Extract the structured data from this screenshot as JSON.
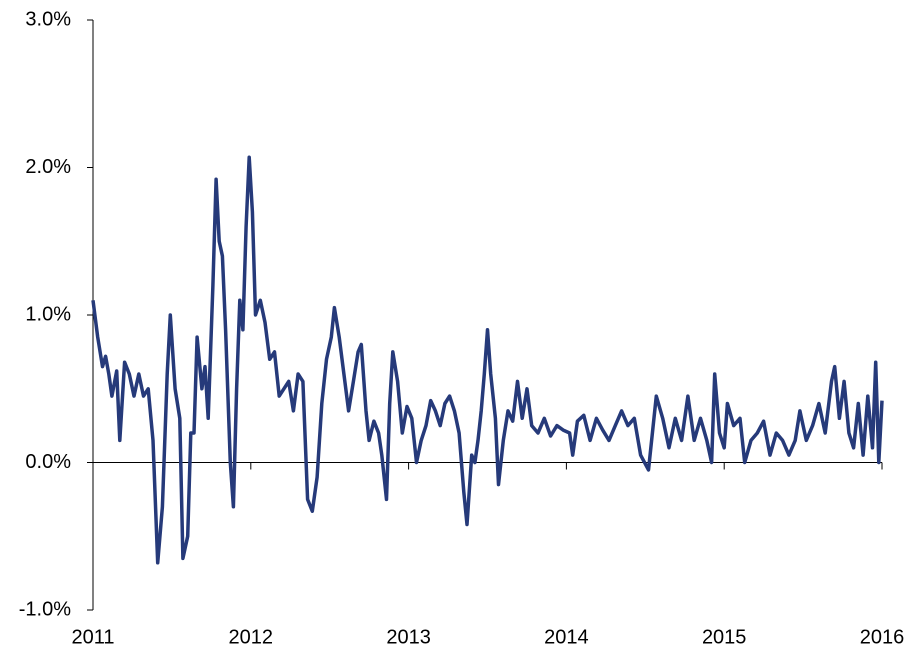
{
  "chart_data": {
    "type": "line",
    "x": [
      2011.0,
      2011.03,
      2011.06,
      2011.08,
      2011.1,
      2011.12,
      2011.15,
      2011.17,
      2011.2,
      2011.23,
      2011.26,
      2011.29,
      2011.32,
      2011.35,
      2011.38,
      2011.41,
      2011.44,
      2011.47,
      2011.49,
      2011.52,
      2011.55,
      2011.57,
      2011.6,
      2011.62,
      2011.64,
      2011.66,
      2011.69,
      2011.71,
      2011.73,
      2011.76,
      2011.78,
      2011.8,
      2011.82,
      2011.84,
      2011.87,
      2011.89,
      2011.91,
      2011.93,
      2011.95,
      2011.97,
      2011.99,
      2012.01,
      2012.03,
      2012.06,
      2012.09,
      2012.12,
      2012.15,
      2012.18,
      2012.21,
      2012.24,
      2012.27,
      2012.3,
      2012.33,
      2012.36,
      2012.39,
      2012.42,
      2012.45,
      2012.48,
      2012.51,
      2012.53,
      2012.56,
      2012.59,
      2012.62,
      2012.65,
      2012.68,
      2012.7,
      2012.73,
      2012.75,
      2012.78,
      2012.81,
      2012.83,
      2012.86,
      2012.88,
      2012.9,
      2012.93,
      2012.96,
      2012.99,
      2013.02,
      2013.05,
      2013.08,
      2013.11,
      2013.14,
      2013.17,
      2013.2,
      2013.23,
      2013.26,
      2013.29,
      2013.32,
      2013.35,
      2013.37,
      2013.4,
      2013.42,
      2013.44,
      2013.46,
      2013.48,
      2013.5,
      2013.52,
      2013.55,
      2013.57,
      2013.6,
      2013.63,
      2013.66,
      2013.69,
      2013.72,
      2013.75,
      2013.78,
      2013.82,
      2013.86,
      2013.9,
      2013.94,
      2013.98,
      2014.02,
      2014.04,
      2014.07,
      2014.11,
      2014.15,
      2014.19,
      2014.23,
      2014.27,
      2014.31,
      2014.35,
      2014.39,
      2014.43,
      2014.47,
      2014.52,
      2014.57,
      2014.61,
      2014.65,
      2014.69,
      2014.73,
      2014.77,
      2014.81,
      2014.85,
      2014.89,
      2014.92,
      2014.94,
      2014.97,
      2015.0,
      2015.02,
      2015.06,
      2015.1,
      2015.13,
      2015.17,
      2015.21,
      2015.25,
      2015.29,
      2015.33,
      2015.37,
      2015.41,
      2015.45,
      2015.48,
      2015.52,
      2015.56,
      2015.6,
      2015.64,
      2015.68,
      2015.7,
      2015.73,
      2015.76,
      2015.79,
      2015.82,
      2015.85,
      2015.88,
      2015.91,
      2015.94,
      2015.96,
      2015.98,
      2016.0
    ],
    "series": [
      {
        "color": "#263a7a",
        "values": [
          1.1,
          0.85,
          0.65,
          0.72,
          0.6,
          0.45,
          0.62,
          0.15,
          0.68,
          0.6,
          0.45,
          0.6,
          0.45,
          0.5,
          0.15,
          -0.68,
          -0.3,
          0.6,
          1.0,
          0.5,
          0.3,
          -0.65,
          -0.5,
          0.2,
          0.2,
          0.85,
          0.5,
          0.65,
          0.3,
          1.2,
          1.92,
          1.5,
          1.4,
          0.9,
          0.0,
          -0.3,
          0.5,
          1.1,
          0.9,
          1.6,
          2.07,
          1.7,
          1.0,
          1.1,
          0.95,
          0.7,
          0.75,
          0.45,
          0.5,
          0.55,
          0.35,
          0.6,
          0.55,
          -0.25,
          -0.33,
          -0.1,
          0.4,
          0.7,
          0.85,
          1.05,
          0.85,
          0.6,
          0.35,
          0.55,
          0.75,
          0.8,
          0.35,
          0.15,
          0.28,
          0.2,
          0.05,
          -0.25,
          0.4,
          0.75,
          0.55,
          0.2,
          0.38,
          0.3,
          0.0,
          0.15,
          0.25,
          0.42,
          0.35,
          0.25,
          0.4,
          0.45,
          0.35,
          0.2,
          -0.2,
          -0.42,
          0.05,
          0.0,
          0.15,
          0.35,
          0.6,
          0.9,
          0.6,
          0.3,
          -0.15,
          0.15,
          0.35,
          0.28,
          0.55,
          0.3,
          0.5,
          0.25,
          0.2,
          0.3,
          0.18,
          0.25,
          0.22,
          0.2,
          0.05,
          0.28,
          0.32,
          0.15,
          0.3,
          0.22,
          0.15,
          0.25,
          0.35,
          0.25,
          0.3,
          0.05,
          -0.05,
          0.45,
          0.3,
          0.1,
          0.3,
          0.15,
          0.45,
          0.15,
          0.3,
          0.15,
          0.0,
          0.6,
          0.2,
          0.1,
          0.4,
          0.25,
          0.3,
          0.0,
          0.15,
          0.2,
          0.28,
          0.05,
          0.2,
          0.15,
          0.05,
          0.15,
          0.35,
          0.15,
          0.25,
          0.4,
          0.2,
          0.55,
          0.65,
          0.3,
          0.55,
          0.2,
          0.1,
          0.4,
          0.05,
          0.45,
          0.1,
          0.68,
          0.0,
          0.42
        ]
      }
    ],
    "xlim": [
      2011,
      2016
    ],
    "xticks": [
      2011,
      2012,
      2013,
      2014,
      2015,
      2016
    ],
    "ylim": [
      -1.0,
      3.0
    ],
    "yticks": [
      {
        "value": -1.0,
        "label": "-1.0%"
      },
      {
        "value": 0.0,
        "label": "0.0%"
      },
      {
        "value": 1.0,
        "label": "1.0%"
      },
      {
        "value": 2.0,
        "label": "2.0%"
      },
      {
        "value": 3.0,
        "label": "3.0%"
      }
    ]
  }
}
